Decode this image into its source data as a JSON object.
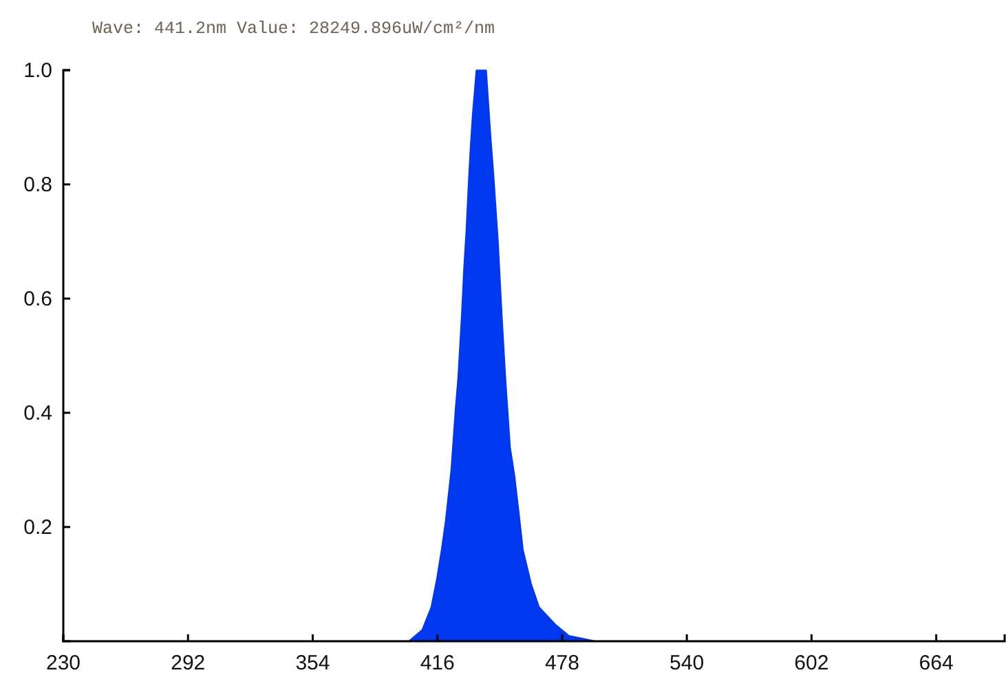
{
  "chart_data": {
    "type": "area",
    "title": "Wave: 441.2nm Value: 28249.896uW/cm²/nm",
    "series": [
      {
        "color": "#0038f0",
        "x": [
          230,
          401.6,
          408.4,
          412.9,
          415.7,
          418.0,
          420.0,
          422.8,
          425.0,
          426.2,
          428.0,
          429.1,
          430.3,
          431.4,
          432.3,
          433.4,
          435.3,
          437.8,
          440.3,
          442.6,
          443.9,
          446.2,
          448.1,
          449.9,
          452.2,
          454.4,
          456.7,
          458.6,
          462.7,
          466.6,
          474.5,
          481.3,
          495.0,
          698
        ],
        "values": [
          0,
          0,
          0.02,
          0.06,
          0.11,
          0.16,
          0.21,
          0.3,
          0.41,
          0.46,
          0.57,
          0.65,
          0.72,
          0.8,
          0.86,
          0.92,
          1.0,
          1.0,
          1.0,
          0.88,
          0.82,
          0.7,
          0.57,
          0.46,
          0.34,
          0.29,
          0.22,
          0.16,
          0.1,
          0.06,
          0.03,
          0.01,
          0,
          0
        ]
      }
    ],
    "xlim": [
      230,
      698
    ],
    "xticks": [
      230,
      292,
      354,
      416,
      478,
      540,
      602,
      664
    ],
    "ylim": [
      0,
      1
    ],
    "yticks": [
      0.2,
      0.4,
      0.6,
      0.8,
      {
        "value": 1,
        "label": "1.0"
      }
    ],
    "grid": false
  }
}
